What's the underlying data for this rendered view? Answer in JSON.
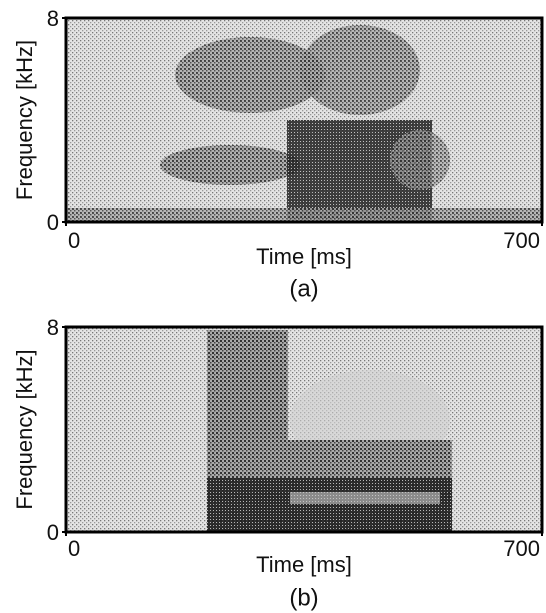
{
  "chart_data": [
    {
      "type": "spectrogram",
      "xlabel": "Time [ms]",
      "ylabel": "Frequency [kHz]",
      "caption": "(a)",
      "xlim": [
        0,
        700
      ],
      "ylim": [
        0,
        8
      ],
      "xticks": [
        0,
        700
      ],
      "yticks": [
        0,
        8
      ]
    },
    {
      "type": "spectrogram",
      "xlabel": "Time [ms]",
      "ylabel": "Frequency [kHz]",
      "caption": "(b)",
      "xlim": [
        0,
        700
      ],
      "ylim": [
        0,
        8
      ],
      "xticks": [
        0,
        700
      ],
      "yticks": [
        0,
        8
      ]
    }
  ]
}
